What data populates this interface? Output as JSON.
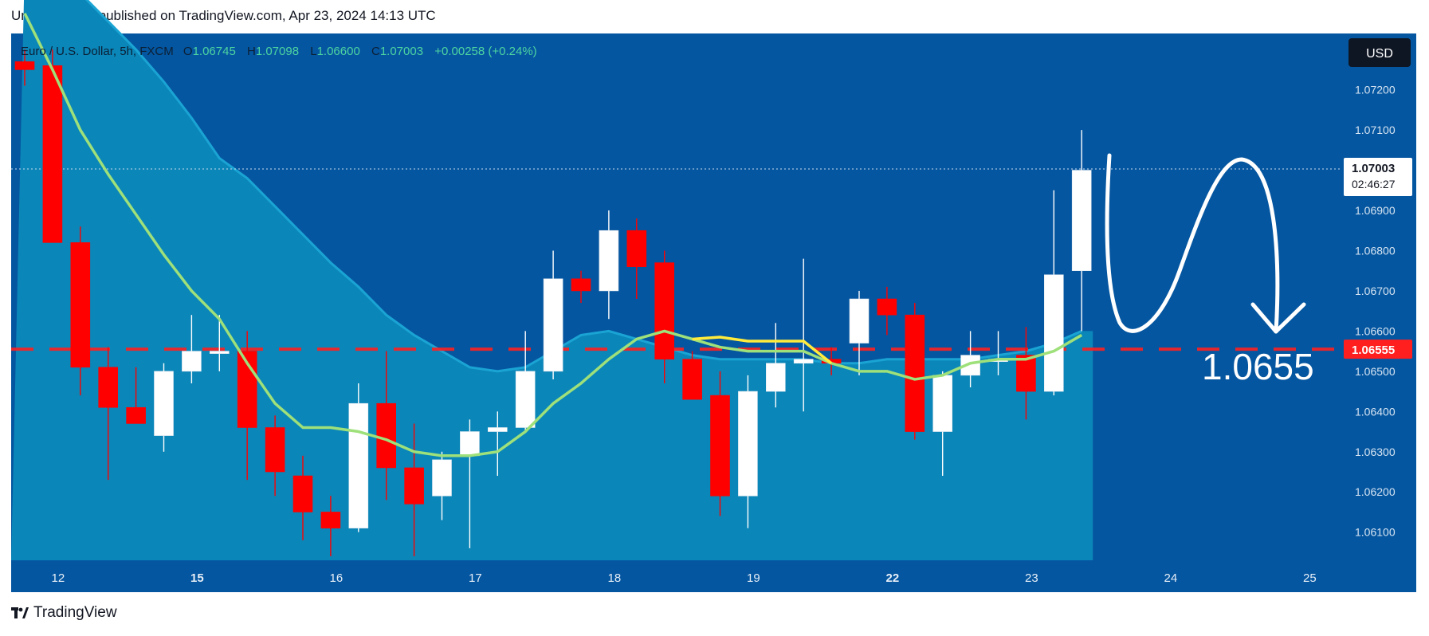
{
  "header": {
    "publish_line": "UnitedSignals published on TradingView.com, Apr 23, 2024 14:13 UTC"
  },
  "legend": {
    "symbol": "Euro / U.S. Dollar, 5h, FXCM",
    "o_label": "O",
    "o_value": "1.06745",
    "h_label": "H",
    "h_value": "1.07098",
    "l_label": "L",
    "l_value": "1.06600",
    "c_label": "C",
    "c_value": "1.07003",
    "change": "+0.00258 (+0.24%)"
  },
  "currency_button": "USD",
  "price_badge": {
    "price": "1.07003",
    "countdown": "02:46:27"
  },
  "level_badge": "1.06555",
  "annotation": "1.0655",
  "footer": {
    "brand": "TradingView"
  },
  "colors": {
    "background": "#0556a0",
    "area_fill": "#0b86b8",
    "area_edge": "#1aa4d4",
    "up_candle": "#ffffff",
    "down_candle": "#ff0000",
    "ma_green": "#9ee07a",
    "ma_yellow": "#ffeb3b",
    "level_line": "#ff2020"
  },
  "chart_data": {
    "type": "candlestick",
    "symbol": "EURUSD",
    "timeframe": "5h",
    "ylim": [
      1.0603,
      1.0734
    ],
    "y_ticks": [
      "1.07200",
      "1.07100",
      "1.06900",
      "1.06800",
      "1.06700",
      "1.06600",
      "1.06500",
      "1.06400",
      "1.06300",
      "1.06200",
      "1.06100"
    ],
    "x_ticks": [
      {
        "label": "12",
        "index": 1.2,
        "bold": false
      },
      {
        "label": "15",
        "index": 6.2,
        "bold": true
      },
      {
        "label": "16",
        "index": 11.2,
        "bold": false
      },
      {
        "label": "17",
        "index": 16.2,
        "bold": false
      },
      {
        "label": "18",
        "index": 21.2,
        "bold": false
      },
      {
        "label": "19",
        "index": 26.2,
        "bold": false
      },
      {
        "label": "22",
        "index": 31.2,
        "bold": true
      },
      {
        "label": "23",
        "index": 36.2,
        "bold": false
      },
      {
        "label": "24",
        "index": 41.2,
        "bold": false
      },
      {
        "label": "25",
        "index": 46.2,
        "bold": false
      }
    ],
    "candles": [
      {
        "o": 1.0727,
        "h": 1.073,
        "l": 1.0721,
        "c": 1.0725
      },
      {
        "o": 1.0726,
        "h": 1.073,
        "l": 1.0682,
        "c": 1.0682
      },
      {
        "o": 1.0682,
        "h": 1.0686,
        "l": 1.0644,
        "c": 1.0651
      },
      {
        "o": 1.0651,
        "h": 1.0656,
        "l": 1.0623,
        "c": 1.0641
      },
      {
        "o": 1.0641,
        "h": 1.0651,
        "l": 1.0637,
        "c": 1.0637
      },
      {
        "o": 1.0634,
        "h": 1.0652,
        "l": 1.063,
        "c": 1.065
      },
      {
        "o": 1.065,
        "h": 1.0664,
        "l": 1.0647,
        "c": 1.0655
      },
      {
        "o": 1.0655,
        "h": 1.0664,
        "l": 1.065,
        "c": 1.0655
      },
      {
        "o": 1.0655,
        "h": 1.066,
        "l": 1.0623,
        "c": 1.0636
      },
      {
        "o": 1.0636,
        "h": 1.0639,
        "l": 1.0619,
        "c": 1.0625
      },
      {
        "o": 1.0624,
        "h": 1.0629,
        "l": 1.0608,
        "c": 1.0615
      },
      {
        "o": 1.0615,
        "h": 1.0619,
        "l": 1.0604,
        "c": 1.0611
      },
      {
        "o": 1.0611,
        "h": 1.0647,
        "l": 1.061,
        "c": 1.0642
      },
      {
        "o": 1.0642,
        "h": 1.0655,
        "l": 1.0618,
        "c": 1.0626
      },
      {
        "o": 1.0626,
        "h": 1.0637,
        "l": 1.0604,
        "c": 1.0617
      },
      {
        "o": 1.0619,
        "h": 1.063,
        "l": 1.0613,
        "c": 1.0628
      },
      {
        "o": 1.0629,
        "h": 1.0638,
        "l": 1.0606,
        "c": 1.0635
      },
      {
        "o": 1.0635,
        "h": 1.064,
        "l": 1.0624,
        "c": 1.0636
      },
      {
        "o": 1.0636,
        "h": 1.066,
        "l": 1.0635,
        "c": 1.065
      },
      {
        "o": 1.065,
        "h": 1.068,
        "l": 1.0648,
        "c": 1.0673
      },
      {
        "o": 1.0673,
        "h": 1.0675,
        "l": 1.0667,
        "c": 1.067
      },
      {
        "o": 1.067,
        "h": 1.069,
        "l": 1.0663,
        "c": 1.0685
      },
      {
        "o": 1.0685,
        "h": 1.0688,
        "l": 1.0668,
        "c": 1.0676
      },
      {
        "o": 1.0677,
        "h": 1.068,
        "l": 1.0647,
        "c": 1.0653
      },
      {
        "o": 1.0653,
        "h": 1.0655,
        "l": 1.0644,
        "c": 1.0643
      },
      {
        "o": 1.0644,
        "h": 1.065,
        "l": 1.0614,
        "c": 1.0619
      },
      {
        "o": 1.0619,
        "h": 1.0649,
        "l": 1.0611,
        "c": 1.0645
      },
      {
        "o": 1.0645,
        "h": 1.0662,
        "l": 1.0641,
        "c": 1.0652
      },
      {
        "o": 1.0652,
        "h": 1.0678,
        "l": 1.064,
        "c": 1.0653
      },
      {
        "o": 1.0653,
        "h": 1.0656,
        "l": 1.0649,
        "c": 1.0652
      },
      {
        "o": 1.0657,
        "h": 1.067,
        "l": 1.0649,
        "c": 1.0668
      },
      {
        "o": 1.0668,
        "h": 1.0671,
        "l": 1.0659,
        "c": 1.0664
      },
      {
        "o": 1.0664,
        "h": 1.0667,
        "l": 1.0633,
        "c": 1.0635
      },
      {
        "o": 1.0635,
        "h": 1.065,
        "l": 1.0624,
        "c": 1.0649
      },
      {
        "o": 1.0649,
        "h": 1.066,
        "l": 1.0646,
        "c": 1.0654
      },
      {
        "o": 1.0653,
        "h": 1.066,
        "l": 1.0649,
        "c": 1.0653
      },
      {
        "o": 1.0654,
        "h": 1.0661,
        "l": 1.0638,
        "c": 1.0645
      },
      {
        "o": 1.0645,
        "h": 1.0695,
        "l": 1.0644,
        "c": 1.0674
      },
      {
        "o": 1.0675,
        "h": 1.071,
        "l": 1.066,
        "c": 1.07
      }
    ],
    "ma_fast": [
      1.0739,
      1.0725,
      1.071,
      1.0699,
      1.0689,
      1.0679,
      1.067,
      1.0663,
      1.0652,
      1.0642,
      1.0636,
      1.0636,
      1.0635,
      1.0633,
      1.063,
      1.0629,
      1.0629,
      1.063,
      1.0635,
      1.0642,
      1.0647,
      1.0653,
      1.0658,
      1.066,
      1.0658,
      1.0656,
      1.0655,
      1.0655,
      1.0655,
      1.0652,
      1.065,
      1.065,
      1.0648,
      1.0649,
      1.0652,
      1.0653,
      1.0653,
      1.0655,
      1.0659
    ],
    "ma_slow": [
      1.0751,
      1.0748,
      1.0744,
      1.0737,
      1.073,
      1.0722,
      1.0713,
      1.0703,
      1.0698,
      1.0691,
      1.0684,
      1.0677,
      1.0671,
      1.0664,
      1.0659,
      1.0655,
      1.0651,
      1.065,
      1.0651,
      1.0655,
      1.0659,
      1.066,
      1.0658,
      1.0656,
      1.0654,
      1.0653,
      1.0653,
      1.0653,
      1.0653,
      1.0652,
      1.0652,
      1.0653,
      1.0653,
      1.0653,
      1.0653,
      1.0654,
      1.0655,
      1.0657,
      1.066
    ],
    "horizontal_level": 1.06555,
    "last_price": 1.07003
  }
}
